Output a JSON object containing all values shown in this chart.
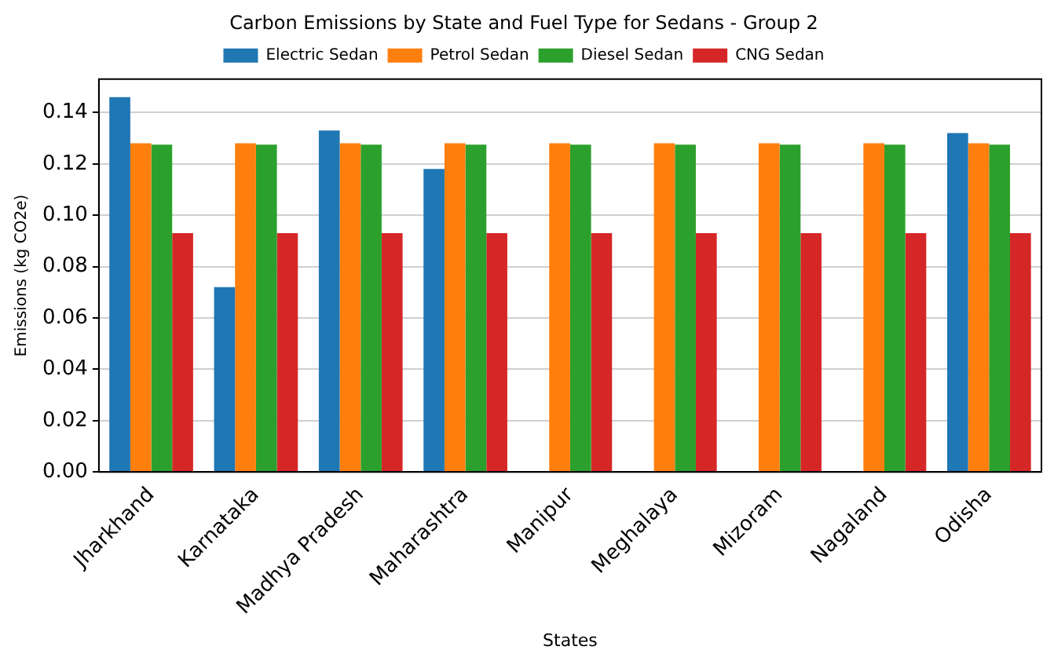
{
  "chart_data": {
    "type": "bar",
    "title": "Carbon Emissions by State and Fuel Type for Sedans - Group 2",
    "xlabel": "States",
    "ylabel": "Emissions (kg CO2e)",
    "categories": [
      "Jharkhand",
      "Karnataka",
      "Madhya Pradesh",
      "Maharashtra",
      "Manipur",
      "Meghalaya",
      "Mizoram",
      "Nagaland",
      "Odisha"
    ],
    "series": [
      {
        "name": "Electric Sedan",
        "color": "#1f77b4",
        "values": [
          0.146,
          0.072,
          0.133,
          0.118,
          null,
          null,
          null,
          null,
          0.132
        ]
      },
      {
        "name": "Petrol Sedan",
        "color": "#ff7f0e",
        "values": [
          0.128,
          0.128,
          0.128,
          0.128,
          0.128,
          0.128,
          0.128,
          0.128,
          0.128
        ]
      },
      {
        "name": "Diesel Sedan",
        "color": "#2ca02c",
        "values": [
          0.1275,
          0.1275,
          0.1275,
          0.1275,
          0.1275,
          0.1275,
          0.1275,
          0.1275,
          0.1275
        ]
      },
      {
        "name": "CNG Sedan",
        "color": "#d62728",
        "values": [
          0.093,
          0.093,
          0.093,
          0.093,
          0.093,
          0.093,
          0.093,
          0.093,
          0.093
        ]
      }
    ],
    "ylim": [
      0,
      0.153
    ],
    "yticks": [
      {
        "value": 0,
        "label": "0.00"
      },
      {
        "value": 0.02,
        "label": "0.02"
      },
      {
        "value": 0.04,
        "label": "0.04"
      },
      {
        "value": 0.06,
        "label": "0.06"
      },
      {
        "value": 0.08,
        "label": "0.08"
      },
      {
        "value": 0.1,
        "label": "0.10"
      },
      {
        "value": 0.12,
        "label": "0.12"
      },
      {
        "value": 0.14,
        "label": "0.14"
      }
    ],
    "grid": "y",
    "legend": "top"
  }
}
